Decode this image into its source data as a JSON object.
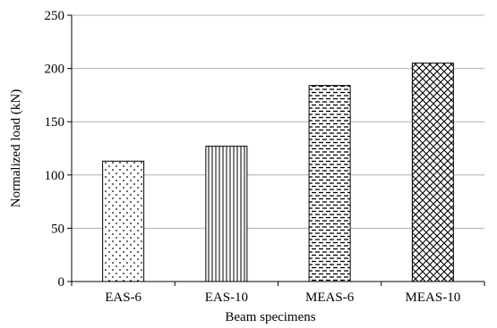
{
  "chart_data": {
    "type": "bar",
    "title": "",
    "xlabel": "Beam specimens",
    "ylabel": "Normalized load (kN)",
    "ylim": [
      0,
      250
    ],
    "yticks": [
      0,
      50,
      100,
      150,
      200,
      250
    ],
    "grid": "horizontal",
    "categories": [
      "EAS-6",
      "EAS-10",
      "MEAS-6",
      "MEAS-10"
    ],
    "values": [
      113,
      127,
      184,
      205
    ],
    "patterns": [
      "dots",
      "vertical-lines",
      "dashed-horizontal-lines",
      "crosshatch"
    ]
  }
}
